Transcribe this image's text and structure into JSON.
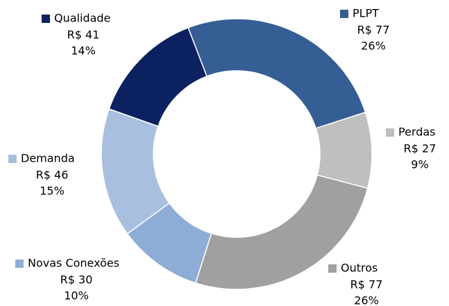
{
  "chart_data": {
    "type": "donut",
    "categories": [
      "PLPT",
      "Perdas",
      "Outros",
      "Novas Conexões",
      "Demanda",
      "Qualidade"
    ],
    "values": [
      77,
      27,
      77,
      30,
      46,
      41
    ],
    "value_labels": [
      "R$ 77",
      "R$ 27",
      "R$ 77",
      "R$ 30",
      "R$ 46",
      "R$ 41"
    ],
    "percents": [
      26,
      9,
      26,
      10,
      15,
      14
    ],
    "percent_labels": [
      "26%",
      "9%",
      "26%",
      "10%",
      "15%",
      "14%"
    ],
    "colors": [
      "#355e94",
      "#bfbfbf",
      "#a0a0a0",
      "#8eadd6",
      "#a9bfdf",
      "#0c2260"
    ]
  }
}
